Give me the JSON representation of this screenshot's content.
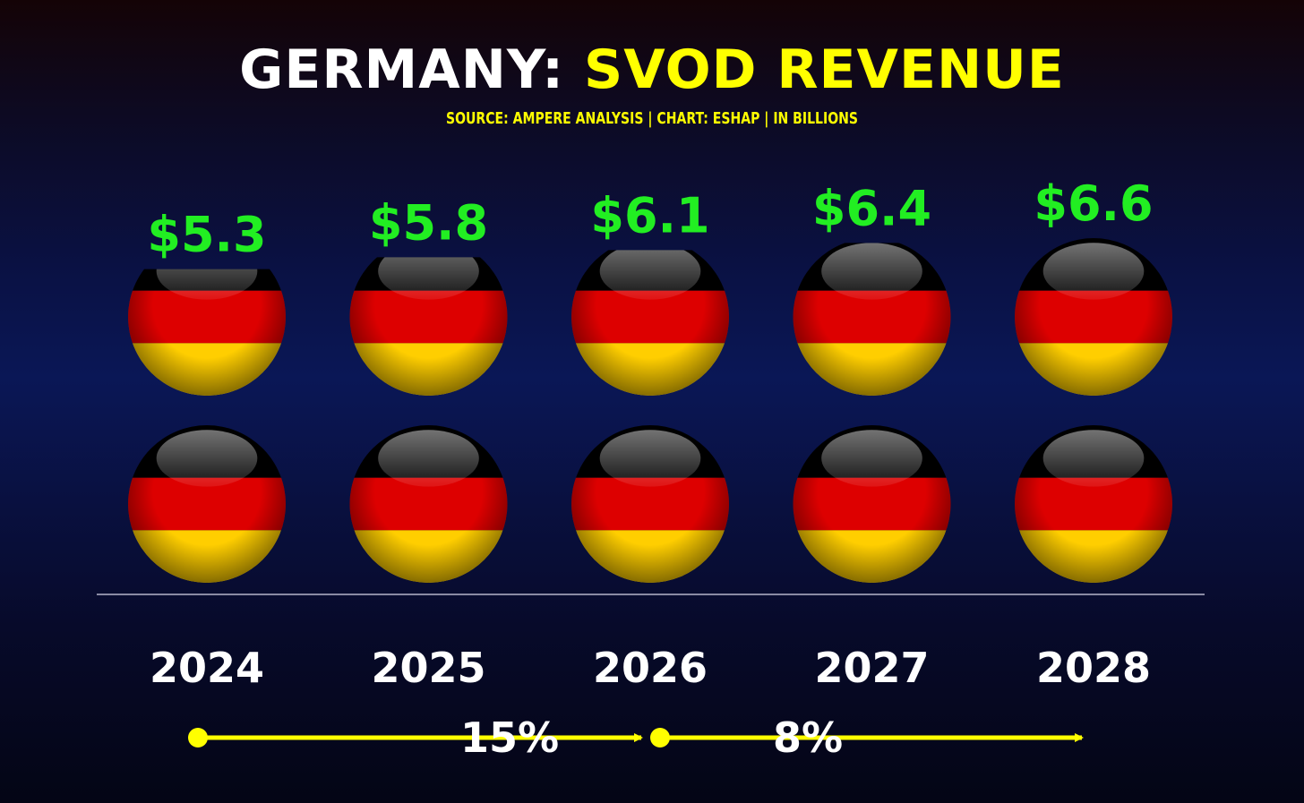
{
  "title": {
    "part1": "GERMANY:",
    "part2": "SVOD REVENUE"
  },
  "subtitle": "SOURCE: AMPERE ANALYSIS | CHART: ESHAP | IN BILLIONS",
  "colors": {
    "title_white": "#ffffff",
    "title_yellow": "#ffff00",
    "value_green": "#22ee22",
    "arrow_yellow": "#ffff00",
    "flag_black": "#000000",
    "flag_red": "#dd0000",
    "flag_gold": "#ffce00"
  },
  "chart_data": {
    "type": "bar",
    "categories": [
      "2024",
      "2025",
      "2026",
      "2027",
      "2028"
    ],
    "values": [
      5.3,
      5.8,
      6.1,
      6.4,
      6.6
    ],
    "value_labels": [
      "$5.3",
      "$5.8",
      "$6.1",
      "$6.4",
      "$6.6"
    ],
    "unit": "billions",
    "title": "GERMANY: SVOD REVENUE",
    "subtitle": "SOURCE: AMPERE ANALYSIS | CHART: ESHAP | IN BILLIONS",
    "ylim": [
      0,
      6.6
    ],
    "marks": "stacked German flag spheres; top sphere filled in proportion to value",
    "grid": false,
    "legend": "none",
    "growth_annotations": [
      {
        "label": "15%",
        "from": "2024",
        "to": "2026"
      },
      {
        "label": "8%",
        "from": "2026",
        "to": "2028"
      }
    ]
  }
}
